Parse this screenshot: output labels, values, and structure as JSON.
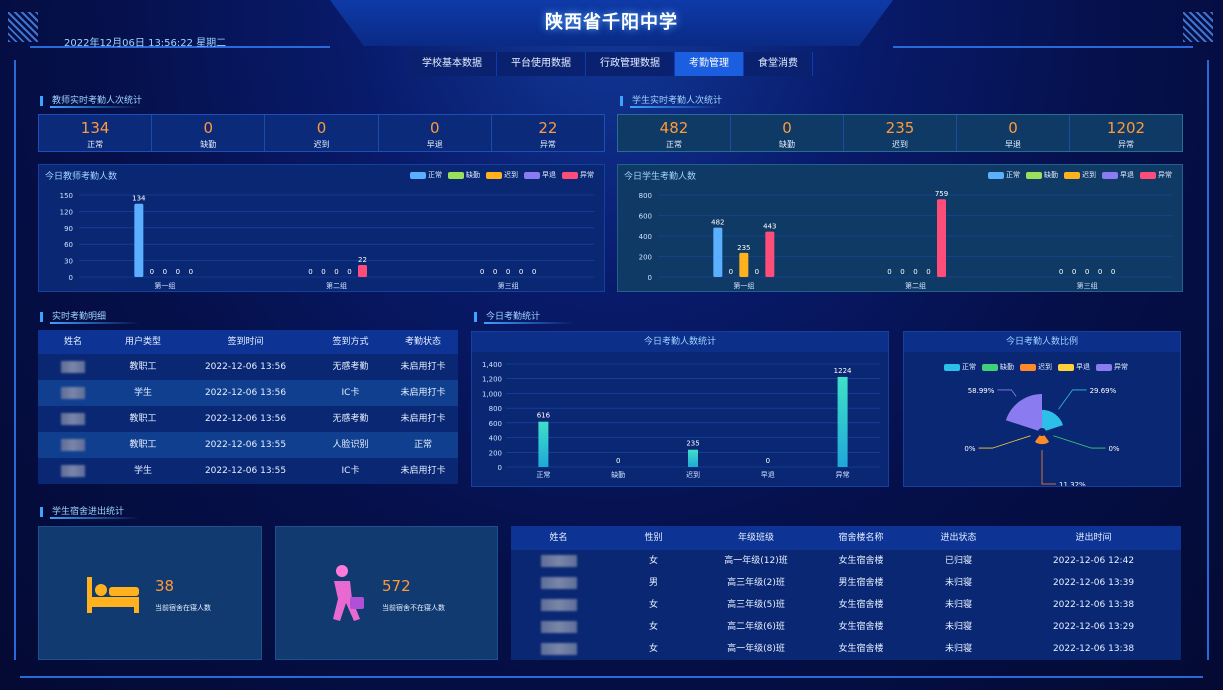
{
  "header": {
    "title": "陕西省千阳中学",
    "datetime": "2022年12月06日 13:56:22 星期二",
    "tabs": [
      "学校基本数据",
      "平台使用数据",
      "行政管理数据",
      "考勤管理",
      "食堂消费"
    ],
    "active_tab": "考勤管理"
  },
  "teacher_section": {
    "title": "教师实时考勤人次统计",
    "stats": [
      {
        "value": "134",
        "label": "正常"
      },
      {
        "value": "0",
        "label": "缺勤"
      },
      {
        "value": "0",
        "label": "迟到"
      },
      {
        "value": "0",
        "label": "早退"
      },
      {
        "value": "22",
        "label": "异常"
      }
    ]
  },
  "student_section": {
    "title": "学生实时考勤人次统计",
    "stats": [
      {
        "value": "482",
        "label": "正常"
      },
      {
        "value": "0",
        "label": "缺勤"
      },
      {
        "value": "235",
        "label": "迟到"
      },
      {
        "value": "0",
        "label": "早退"
      },
      {
        "value": "1202",
        "label": "异常"
      }
    ]
  },
  "legend_labels": [
    "正常",
    "缺勤",
    "迟到",
    "早退",
    "异常"
  ],
  "colors": {
    "normal": "#5ab0ff",
    "absent": "#9be05a",
    "late": "#ffb21e",
    "early": "#8a7cf0",
    "abnormal": "#ff4d7a",
    "orange_value": "#ff9a3a",
    "teal_bar": "#3fe0c8"
  },
  "chart_data": [
    {
      "type": "bar",
      "title": "今日教师考勤人数",
      "categories": [
        "第一组",
        "第二组",
        "第三组"
      ],
      "ylim": [
        0,
        150
      ],
      "yticks": [
        0,
        30,
        60,
        90,
        120,
        150
      ],
      "series": [
        {
          "name": "正常",
          "values": [
            134,
            0,
            0
          ]
        },
        {
          "name": "缺勤",
          "values": [
            0,
            0,
            0
          ]
        },
        {
          "name": "迟到",
          "values": [
            0,
            0,
            0
          ]
        },
        {
          "name": "早退",
          "values": [
            0,
            0,
            0
          ]
        },
        {
          "name": "异常",
          "values": [
            0,
            22,
            0
          ]
        }
      ],
      "legend": "top-right"
    },
    {
      "type": "bar",
      "title": "今日学生考勤人数",
      "categories": [
        "第一组",
        "第二组",
        "第三组"
      ],
      "ylim": [
        0,
        800
      ],
      "yticks": [
        0,
        200,
        400,
        600,
        800
      ],
      "series": [
        {
          "name": "正常",
          "values": [
            482,
            0,
            0
          ]
        },
        {
          "name": "缺勤",
          "values": [
            0,
            0,
            0
          ]
        },
        {
          "name": "迟到",
          "values": [
            235,
            0,
            0
          ]
        },
        {
          "name": "早退",
          "values": [
            0,
            0,
            0
          ]
        },
        {
          "name": "异常",
          "values": [
            443,
            759,
            0
          ]
        }
      ],
      "legend": "top-right"
    },
    {
      "type": "bar",
      "title": "今日考勤人数统计",
      "categories": [
        "正常",
        "缺勤",
        "迟到",
        "早退",
        "异常"
      ],
      "values": [
        616,
        0,
        235,
        0,
        1224
      ],
      "ylim": [
        0,
        1400
      ],
      "yticks": [
        "0",
        "200",
        "400",
        "600",
        "800",
        "1,000",
        "1,200",
        "1,400"
      ]
    },
    {
      "type": "pie",
      "title": "今日考勤人数比例",
      "style": "rose",
      "legend": "top",
      "slices": [
        {
          "name": "正常",
          "percent": "29.69%",
          "color": "#2cc0e8"
        },
        {
          "name": "缺勤",
          "percent": "0%",
          "color": "#3fd07a"
        },
        {
          "name": "迟到",
          "percent": "11.32%",
          "color": "#ff8a2a"
        },
        {
          "name": "早退",
          "percent": "0%",
          "color": "#ffd23a"
        },
        {
          "name": "异常",
          "percent": "58.99%",
          "color": "#8a7cf0"
        }
      ]
    }
  ],
  "realtime": {
    "title": "实时考勤明细",
    "columns": [
      "姓名",
      "用户类型",
      "签到时间",
      "签到方式",
      "考勤状态"
    ],
    "rows": [
      {
        "type": "教职工",
        "time": "2022-12-06 13:56",
        "method": "无感考勤",
        "status": "未启用打卡"
      },
      {
        "type": "学生",
        "time": "2022-12-06 13:56",
        "method": "IC卡",
        "status": "未启用打卡"
      },
      {
        "type": "教职工",
        "time": "2022-12-06 13:56",
        "method": "无感考勤",
        "status": "未启用打卡"
      },
      {
        "type": "教职工",
        "time": "2022-12-06 13:55",
        "method": "人脸识别",
        "status": "正常"
      },
      {
        "type": "学生",
        "time": "2022-12-06 13:55",
        "method": "IC卡",
        "status": "未启用打卡"
      }
    ]
  },
  "today_stats": {
    "title": "今日考勤统计"
  },
  "dorm": {
    "title": "学生宿舍进出统计",
    "in_count": "38",
    "in_label": "当前宿舍在寝人数",
    "out_count": "572",
    "out_label": "当前宿舍不在寝人数",
    "columns": [
      "姓名",
      "性别",
      "年级班级",
      "宿舍楼名称",
      "进出状态",
      "进出时间"
    ],
    "rows": [
      {
        "gender": "女",
        "class": "高一年级(12)班",
        "building": "女生宿舍楼",
        "status": "已归寝",
        "time": "2022-12-06 12:42"
      },
      {
        "gender": "男",
        "class": "高三年级(2)班",
        "building": "男生宿舍楼",
        "status": "未归寝",
        "time": "2022-12-06 13:39"
      },
      {
        "gender": "女",
        "class": "高三年级(5)班",
        "building": "女生宿舍楼",
        "status": "未归寝",
        "time": "2022-12-06 13:38"
      },
      {
        "gender": "女",
        "class": "高二年级(6)班",
        "building": "女生宿舍楼",
        "status": "未归寝",
        "time": "2022-12-06 13:29"
      },
      {
        "gender": "女",
        "class": "高一年级(8)班",
        "building": "女生宿舍楼",
        "status": "未归寝",
        "time": "2022-12-06 13:38"
      }
    ]
  }
}
